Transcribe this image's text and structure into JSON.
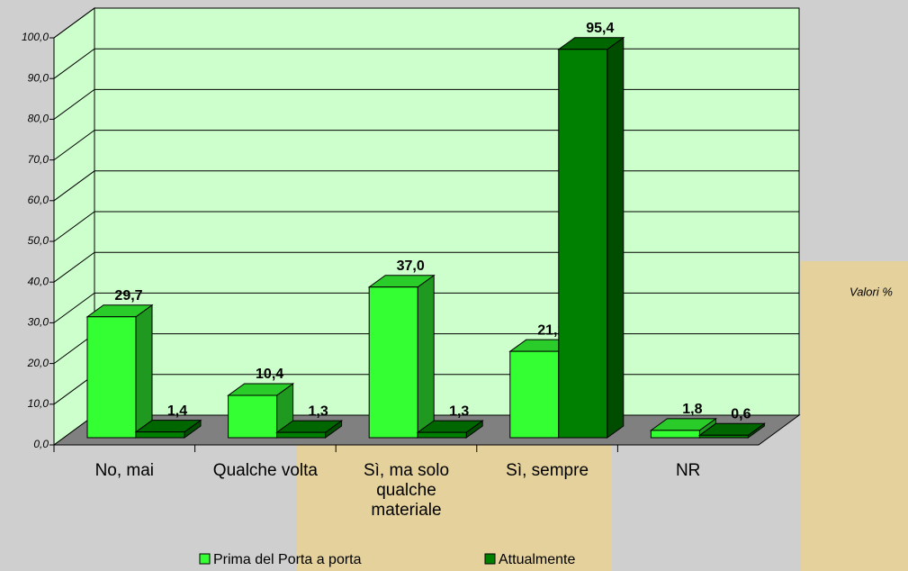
{
  "chart_data": {
    "type": "bar3d",
    "categories": [
      "No, mai",
      "Qualche volta",
      "Sì, ma solo qualche materiale",
      "Sì, sempre",
      "NR"
    ],
    "series": [
      {
        "name": "Prima del Porta a porta",
        "color": "#33ff33",
        "values": [
          29.7,
          10.4,
          37.0,
          21.2,
          1.8
        ],
        "value_labels": [
          "29,7",
          "10,4",
          "37,0",
          "21,2",
          "1,8"
        ]
      },
      {
        "name": "Attualmente",
        "color": "#008000",
        "values": [
          1.4,
          1.3,
          1.3,
          95.4,
          0.6
        ],
        "value_labels": [
          "1,4",
          "1,3",
          "1,3",
          "95,4",
          "0,6"
        ]
      }
    ],
    "ylim": [
      0,
      100
    ],
    "yticks": [
      {
        "value": 0,
        "label": "0,0"
      },
      {
        "value": 10,
        "label": "10,0"
      },
      {
        "value": 20,
        "label": "20,0"
      },
      {
        "value": 30,
        "label": "30,0"
      },
      {
        "value": 40,
        "label": "40,0"
      },
      {
        "value": 50,
        "label": "50,0"
      },
      {
        "value": 60,
        "label": "60,0"
      },
      {
        "value": 70,
        "label": "70,0"
      },
      {
        "value": 80,
        "label": "80,0"
      },
      {
        "value": 90,
        "label": "90,0"
      },
      {
        "value": 100,
        "label": "100,0"
      }
    ],
    "grid": true,
    "annotation": "Valori %",
    "legend": "bottom"
  }
}
